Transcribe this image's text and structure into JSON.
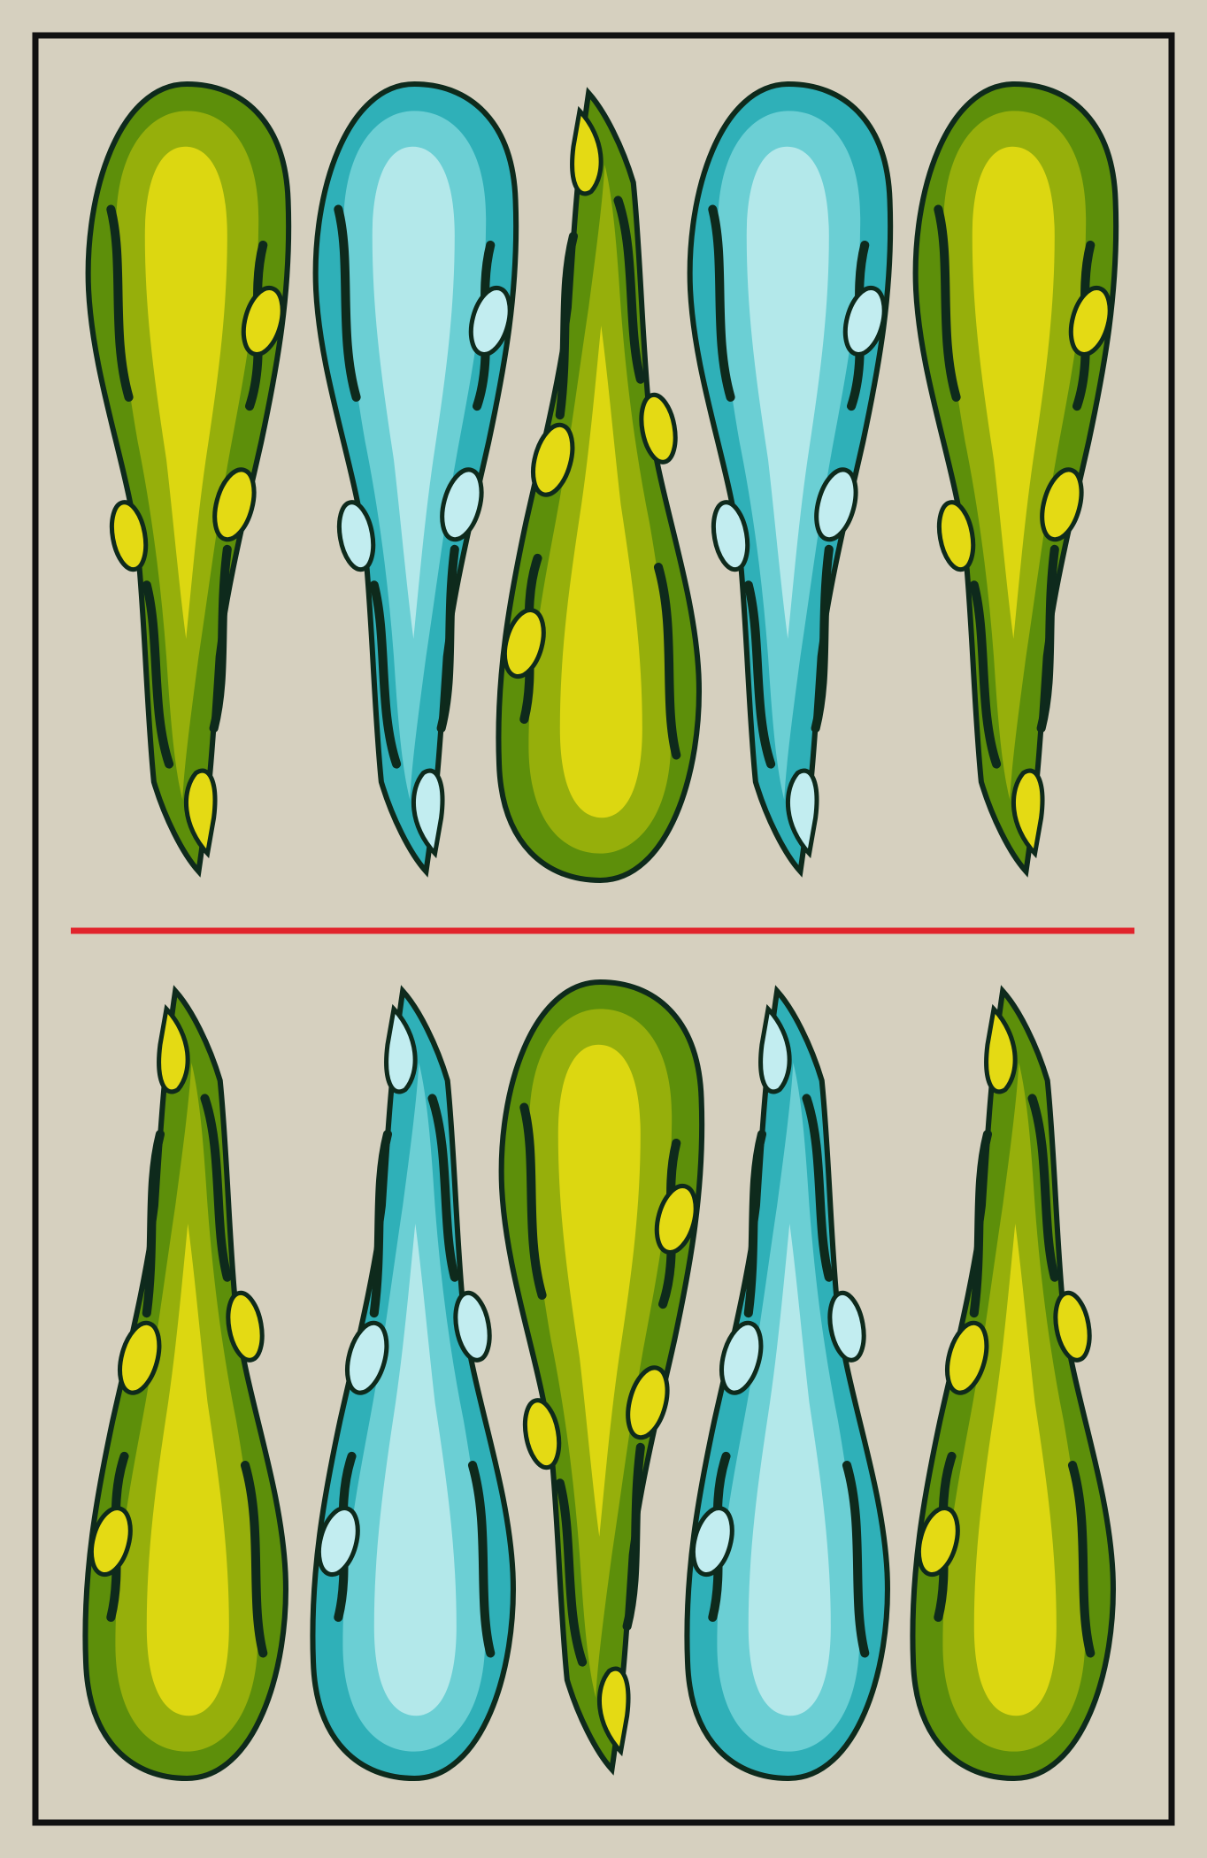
{
  "card": {
    "suit": "clubs",
    "pip_count": 10,
    "pip_icon": "club-baton-icon",
    "colors": {
      "background": "#d6d0bf",
      "frame": "#111111",
      "divider": "#e1242c",
      "outline": "#0e2a1c",
      "green_dark": "#5d8f0a",
      "green_mid": "#96af0b",
      "green_light": "#dcd711",
      "blue_dark": "#2fb0b8",
      "blue_mid": "#6bcfd4",
      "blue_light": "#b3e8ea",
      "leaf_yellow": "#e4da14",
      "leaf_ice": "#c2edf0"
    },
    "rows": [
      {
        "name": "top-row",
        "pips": [
          {
            "color": "green",
            "orientation": "head-up"
          },
          {
            "color": "blue",
            "orientation": "head-up"
          },
          {
            "color": "green",
            "orientation": "head-down"
          },
          {
            "color": "blue",
            "orientation": "head-up"
          },
          {
            "color": "green",
            "orientation": "head-up"
          }
        ]
      },
      {
        "name": "bottom-row",
        "pips": [
          {
            "color": "green",
            "orientation": "head-down"
          },
          {
            "color": "blue",
            "orientation": "head-down"
          },
          {
            "color": "green",
            "orientation": "head-up"
          },
          {
            "color": "blue",
            "orientation": "head-down"
          },
          {
            "color": "green",
            "orientation": "head-down"
          }
        ]
      }
    ]
  }
}
